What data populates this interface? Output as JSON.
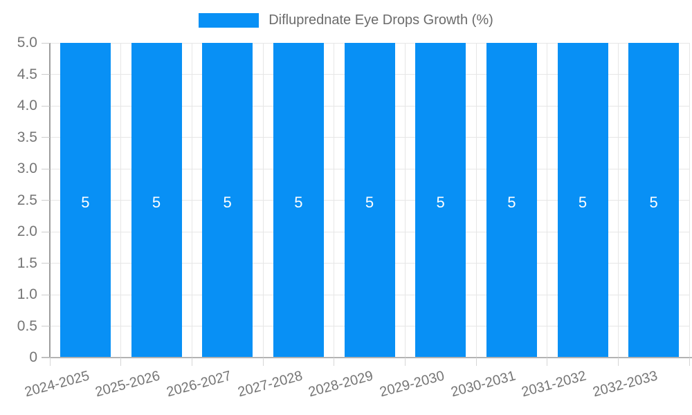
{
  "chart_data": {
    "type": "bar",
    "title": "Difluprednate Eye Drops Growth (%)",
    "legend": {
      "label": "Difluprednate Eye Drops Growth (%)",
      "position": "top-center",
      "swatch_color": "#0890f5"
    },
    "categories": [
      "2024-2025",
      "2025-2026",
      "2026-2027",
      "2027-2028",
      "2028-2029",
      "2029-2030",
      "2030-2031",
      "2031-2032",
      "2032-2033"
    ],
    "values": [
      5,
      5,
      5,
      5,
      5,
      5,
      5,
      5,
      5
    ],
    "value_labels": [
      "5",
      "5",
      "5",
      "5",
      "5",
      "5",
      "5",
      "5",
      "5"
    ],
    "xlabel": "",
    "ylabel": "",
    "ylim": [
      0,
      5
    ],
    "ytick_step": 0.5,
    "ytick_labels": [
      "0",
      "0.5",
      "1.0",
      "1.5",
      "2.0",
      "2.5",
      "3.0",
      "3.5",
      "4.0",
      "4.5",
      "5.0"
    ],
    "grid": true,
    "x_label_rotation_deg": -15,
    "colors": {
      "bar": "#0890f5",
      "value_label": "#ffffff",
      "axis_text": "#757575",
      "legend_text": "#6b6b6b",
      "gridline": "#e6e6e6",
      "y_axis_line": "#9e9e9e",
      "x_axis_line": "#b3b3b3"
    }
  }
}
